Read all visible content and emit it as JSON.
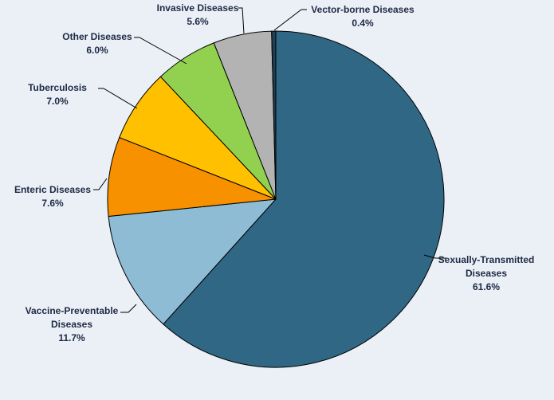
{
  "chart_data": {
    "type": "pie",
    "title": "",
    "start_angle_deg": 0,
    "direction": "clockwise",
    "slices": [
      {
        "label_lines": [
          "Sexually-Transmitted",
          "Diseases"
        ],
        "value": 61.6,
        "value_label": "61.6%",
        "color": "#306785"
      },
      {
        "label_lines": [
          "Vaccine-Preventable",
          "Diseases"
        ],
        "value": 11.7,
        "value_label": "11.7%",
        "color": "#8fbcd5"
      },
      {
        "label_lines": [
          "Enteric Diseases"
        ],
        "value": 7.6,
        "value_label": "7.6%",
        "color": "#f79100"
      },
      {
        "label_lines": [
          "Tuberculosis"
        ],
        "value": 7.0,
        "value_label": "7.0%",
        "color": "#ffc000"
      },
      {
        "label_lines": [
          "Other Diseases"
        ],
        "value": 6.0,
        "value_label": "6.0%",
        "color": "#92d050"
      },
      {
        "label_lines": [
          "Invasive Diseases"
        ],
        "value": 5.6,
        "value_label": "5.6%",
        "color": "#b3b3b3"
      },
      {
        "label_lines": [
          "Vector-borne Diseases"
        ],
        "value": 0.4,
        "value_label": "0.4%",
        "color": "#1f3f55"
      }
    ]
  }
}
